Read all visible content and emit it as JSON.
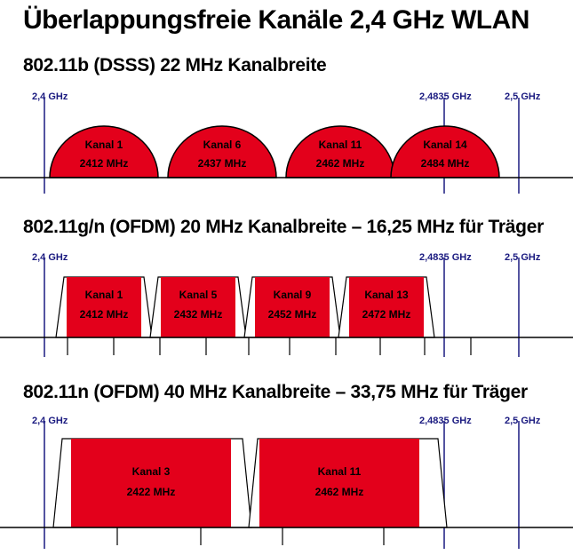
{
  "title": "Überlappungsfreie Kanäle 2,4 GHz WLAN",
  "colors": {
    "channel_fill": "#e3001b",
    "frequency_line": "#1a1a80",
    "axis": "#000000"
  },
  "sections": [
    {
      "title": "802.11b (DSSS) 22 MHz Kanalbreite",
      "markers": [
        "2,4 GHz",
        "2,4835 GHz",
        "2,5 GHz"
      ],
      "channels": [
        {
          "name": "Kanal 1",
          "freq": "2412 MHz"
        },
        {
          "name": "Kanal 6",
          "freq": "2437 MHz"
        },
        {
          "name": "Kanal 11",
          "freq": "2462 MHz"
        },
        {
          "name": "Kanal 14",
          "freq": "2484 MHz"
        }
      ]
    },
    {
      "title": "802.11g/n (OFDM) 20 MHz Kanalbreite – 16,25 MHz für Träger",
      "markers": [
        "2,4 GHz",
        "2,4835 GHz",
        "2,5 GHz"
      ],
      "channels": [
        {
          "name": "Kanal 1",
          "freq": "2412 MHz"
        },
        {
          "name": "Kanal 5",
          "freq": "2432 MHz"
        },
        {
          "name": "Kanal 9",
          "freq": "2452 MHz"
        },
        {
          "name": "Kanal 13",
          "freq": "2472 MHz"
        }
      ]
    },
    {
      "title": "802.11n (OFDM) 40 MHz Kanalbreite – 33,75 MHz für Träger",
      "markers": [
        "2,4 GHz",
        "2,4835 GHz",
        "2,5 GHz"
      ],
      "channels": [
        {
          "name": "Kanal 3",
          "freq": "2422 MHz"
        },
        {
          "name": "Kanal 11",
          "freq": "2462 MHz"
        }
      ]
    }
  ]
}
